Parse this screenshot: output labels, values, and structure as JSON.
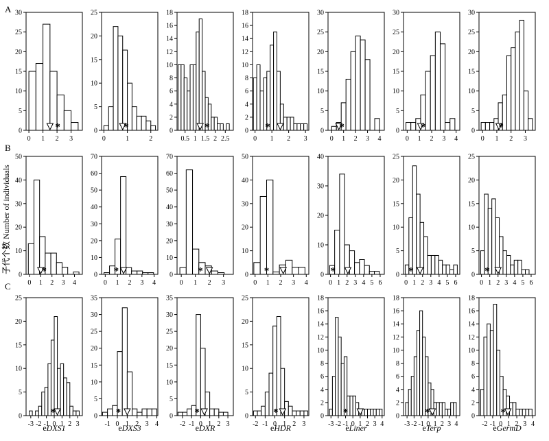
{
  "figure": {
    "ylabel": "子代个数 Number of individuals",
    "rows": [
      {
        "letter": "A"
      },
      {
        "letter": "B"
      },
      {
        "letter": "C"
      }
    ],
    "columns": [
      {
        "prefix": "e",
        "gene": "DXS1"
      },
      {
        "prefix": "e",
        "gene": "DXS3"
      },
      {
        "prefix": "e",
        "gene": "DXR"
      },
      {
        "prefix": "e",
        "gene": "HDR"
      },
      {
        "prefix": "e",
        "gene": "Liner"
      },
      {
        "prefix": "e",
        "gene": "Terp"
      },
      {
        "prefix": "e",
        "gene": "GermD"
      }
    ]
  },
  "chart_data": [
    {
      "type": "bar",
      "row": "A",
      "col": 0,
      "ylim": [
        0,
        30
      ],
      "yticks": [
        0,
        5,
        10,
        15,
        20,
        25,
        30
      ],
      "xlim": [
        -0.2,
        3.8
      ],
      "xticks": [
        0,
        1,
        2,
        3
      ],
      "bins": [
        0,
        0.5,
        1,
        1.5,
        2,
        2.5,
        3,
        3.5
      ],
      "counts": [
        15,
        17,
        27,
        15,
        9,
        5,
        2
      ],
      "triangle": 1.5,
      "star": 2.05
    },
    {
      "type": "bar",
      "row": "A",
      "col": 1,
      "ylim": [
        0,
        25
      ],
      "yticks": [
        0,
        5,
        10,
        15,
        20,
        25
      ],
      "xlim": [
        -0.1,
        2.3
      ],
      "xticks": [
        0,
        1,
        2
      ],
      "bins": [
        0,
        0.2,
        0.4,
        0.6,
        0.8,
        1,
        1.2,
        1.4,
        1.6,
        1.8,
        2,
        2.2
      ],
      "counts": [
        1,
        5,
        22,
        20,
        17,
        10,
        5,
        3,
        3,
        2,
        1
      ],
      "triangle": 0.8,
      "star": 0.95
    },
    {
      "type": "bar",
      "row": "A",
      "col": 2,
      "ylim": [
        0,
        18
      ],
      "yticks": [
        0,
        2,
        4,
        6,
        8,
        10,
        12,
        14,
        16,
        18
      ],
      "xlim": [
        0.1,
        2.9
      ],
      "xticks": [
        0.5,
        1,
        1.5,
        2,
        2.5
      ],
      "xtick_labels": [
        "0.5",
        "1",
        "1.5",
        "2",
        "2.5"
      ],
      "bins": [
        0.15,
        0.3,
        0.45,
        0.6,
        0.75,
        0.9,
        1.05,
        1.2,
        1.35,
        1.5,
        1.65,
        1.8,
        1.95,
        2.1,
        2.25,
        2.4,
        2.55,
        2.7
      ],
      "counts": [
        10,
        10,
        8,
        6,
        10,
        10,
        15,
        17,
        9,
        5,
        4,
        2,
        2,
        1,
        1,
        0,
        1
      ],
      "triangle": 1.25,
      "star": 1.6
    },
    {
      "type": "bar",
      "row": "A",
      "col": 3,
      "ylim": [
        0,
        18
      ],
      "yticks": [
        0,
        2,
        4,
        6,
        8,
        10,
        12,
        14,
        16,
        18
      ],
      "xlim": [
        -0.15,
        3.2
      ],
      "xticks": [
        0,
        1,
        2,
        3
      ],
      "bins": [
        -0.1,
        0.1,
        0.3,
        0.5,
        0.7,
        0.9,
        1.1,
        1.3,
        1.5,
        1.7,
        1.9,
        2.1,
        2.3,
        2.5,
        2.7,
        2.9,
        3.1
      ],
      "counts": [
        8,
        10,
        6,
        8,
        9,
        13,
        15,
        9,
        4,
        2,
        2,
        2,
        1,
        1,
        1,
        1
      ],
      "triangle": 1.5,
      "star": 0.75
    },
    {
      "type": "bar",
      "row": "A",
      "col": 4,
      "ylim": [
        0,
        30
      ],
      "yticks": [
        0,
        5,
        10,
        15,
        20,
        25,
        30
      ],
      "xlim": [
        -0.3,
        4.4
      ],
      "xticks": [
        0,
        1,
        2,
        3,
        4
      ],
      "bins": [
        0,
        0.4,
        0.8,
        1.2,
        1.6,
        2,
        2.4,
        2.8,
        3.2,
        3.6,
        4
      ],
      "counts": [
        1,
        2,
        7,
        13,
        20,
        24,
        23,
        18,
        0,
        3
      ],
      "triangle": 0.6,
      "star": 0.85
    },
    {
      "type": "bar",
      "row": "A",
      "col": 5,
      "ylim": [
        0,
        30
      ],
      "yticks": [
        0,
        5,
        10,
        15,
        20,
        25,
        30
      ],
      "xlim": [
        -0.3,
        4.3
      ],
      "xticks": [
        0,
        1,
        2,
        3,
        4
      ],
      "bins": [
        -0.1,
        0.3,
        0.7,
        1.1,
        1.5,
        1.9,
        2.3,
        2.7,
        3.1,
        3.5,
        3.9
      ],
      "counts": [
        2,
        2,
        3,
        9,
        15,
        19,
        25,
        22,
        2,
        3
      ],
      "triangle": 1.1,
      "star": 1.3
    },
    {
      "type": "bar",
      "row": "A",
      "col": 6,
      "ylim": [
        0,
        30
      ],
      "yticks": [
        0,
        5,
        10,
        15,
        20,
        25,
        30
      ],
      "xlim": [
        -0.25,
        3.7
      ],
      "xticks": [
        0,
        1,
        2,
        3
      ],
      "bins": [
        -0.1,
        0.2,
        0.5,
        0.8,
        1.1,
        1.4,
        1.7,
        2,
        2.3,
        2.6,
        2.9,
        3.2,
        3.5
      ],
      "counts": [
        2,
        2,
        2,
        3,
        7,
        9,
        19,
        21,
        25,
        28,
        10,
        3
      ],
      "triangle": 1.15,
      "star": 1.3
    },
    {
      "type": "bar",
      "row": "B",
      "col": 0,
      "ylim": [
        0,
        50
      ],
      "yticks": [
        0,
        10,
        20,
        30,
        40,
        50
      ],
      "xlim": [
        -0.3,
        4.7
      ],
      "xticks": [
        0,
        1,
        2,
        3,
        4
      ],
      "bins": [
        -0.1,
        0.4,
        0.9,
        1.4,
        1.9,
        2.4,
        2.9,
        3.4,
        3.9,
        4.4
      ],
      "counts": [
        13,
        40,
        16,
        9,
        9,
        5,
        3,
        0,
        1
      ],
      "triangle": 1.0,
      "star": 1.3
    },
    {
      "type": "bar",
      "row": "B",
      "col": 1,
      "ylim": [
        0,
        70
      ],
      "yticks": [
        0,
        10,
        20,
        30,
        40,
        50,
        60,
        70
      ],
      "xlim": [
        -0.3,
        4.3
      ],
      "xticks": [
        0,
        1,
        2,
        3,
        4
      ],
      "bins": [
        -0.1,
        0.35,
        0.8,
        1.25,
        1.7,
        2.15,
        2.6,
        3.05,
        3.5,
        3.95
      ],
      "counts": [
        1,
        5,
        21,
        58,
        4,
        2,
        2,
        1,
        1
      ],
      "triangle": 1.5,
      "star": 0.9
    },
    {
      "type": "bar",
      "row": "B",
      "col": 2,
      "ylim": [
        0,
        70
      ],
      "yticks": [
        0,
        10,
        20,
        30,
        40,
        50,
        60,
        70
      ],
      "xlim": [
        -0.3,
        3.7
      ],
      "xticks": [
        0,
        1,
        2,
        3
      ],
      "bins": [
        -0.1,
        0.35,
        0.8,
        1.25,
        1.7,
        2.15,
        2.6,
        3.05,
        3.5
      ],
      "counts": [
        4,
        62,
        15,
        7,
        5,
        2,
        1,
        0
      ],
      "triangle": 2.0,
      "star": 1.35
    },
    {
      "type": "bar",
      "row": "B",
      "col": 3,
      "ylim": [
        0,
        50
      ],
      "yticks": [
        0,
        10,
        20,
        30,
        40,
        50
      ],
      "xlim": [
        -0.2,
        4.2
      ],
      "xticks": [
        0,
        1,
        2,
        3,
        4
      ],
      "bins": [
        -0.1,
        0.4,
        0.9,
        1.4,
        1.9,
        2.4,
        2.9,
        3.4,
        3.9
      ],
      "counts": [
        5,
        33,
        40,
        1,
        4,
        6,
        3,
        3
      ],
      "triangle": 2.2,
      "star": 0.9
    },
    {
      "type": "bar",
      "row": "B",
      "col": 4,
      "ylim": [
        0,
        40
      ],
      "yticks": [
        0,
        10,
        20,
        30,
        40
      ],
      "xlim": [
        -0.3,
        6.5
      ],
      "xticks": [
        0,
        1,
        2,
        3,
        4,
        5,
        6
      ],
      "bins": [
        -0.1,
        0.5,
        1.1,
        1.7,
        2.3,
        2.9,
        3.5,
        4.1,
        4.7,
        5.3,
        5.9,
        6.3
      ],
      "counts": [
        3,
        15,
        34,
        10,
        8,
        4,
        5,
        3,
        1,
        1,
        0
      ],
      "triangle": 2.1,
      "star": 0.3
    },
    {
      "type": "bar",
      "row": "B",
      "col": 5,
      "ylim": [
        0,
        25
      ],
      "yticks": [
        0,
        5,
        10,
        15,
        20,
        25
      ],
      "xlim": [
        -0.3,
        6.5
      ],
      "xticks": [
        0,
        1,
        2,
        3,
        4,
        5,
        6
      ],
      "bins": [
        -0.1,
        0.35,
        0.8,
        1.25,
        1.7,
        2.15,
        2.6,
        3.05,
        3.5,
        3.95,
        4.4,
        4.85,
        5.3,
        5.75,
        6.2
      ],
      "counts": [
        2,
        12,
        23,
        17,
        11,
        8,
        4,
        4,
        4,
        3,
        2,
        2,
        1,
        2
      ],
      "triangle": 1.7,
      "star": 0.6
    },
    {
      "type": "bar",
      "row": "B",
      "col": 6,
      "ylim": [
        0,
        25
      ],
      "yticks": [
        0,
        5,
        10,
        15,
        20,
        25
      ],
      "xlim": [
        -0.3,
        6.5
      ],
      "xticks": [
        0,
        1,
        2,
        3,
        4,
        5,
        6
      ],
      "bins": [
        -0.1,
        0.35,
        0.8,
        1.25,
        1.7,
        2.15,
        2.6,
        3.05,
        3.5,
        3.95,
        4.4,
        4.85,
        5.3,
        5.75,
        6.2
      ],
      "counts": [
        5,
        17,
        14,
        16,
        12,
        8,
        5,
        4,
        2,
        3,
        3,
        1,
        1,
        0
      ],
      "triangle": 2.0,
      "star": 0.7
    },
    {
      "type": "bar",
      "row": "C",
      "col": 0,
      "ylim": [
        0,
        25
      ],
      "yticks": [
        0,
        5,
        10,
        15,
        20,
        25
      ],
      "xlim": [
        -3.6,
        3.6
      ],
      "xticks": [
        -3,
        -2,
        -1,
        0,
        1,
        2,
        3
      ],
      "xtick_labels": [
        "-3",
        "-2",
        "-1",
        "0",
        "1",
        "2",
        "3"
      ],
      "bins": [
        -3.2,
        -2.8,
        -2.4,
        -2,
        -1.6,
        -1.2,
        -0.8,
        -0.4,
        0,
        0.4,
        0.8,
        1.2,
        1.6,
        2,
        2.4,
        2.8,
        3.2
      ],
      "counts": [
        1,
        0,
        1,
        2,
        5,
        6,
        11,
        16,
        21,
        10,
        11,
        8,
        7,
        2,
        1,
        1
      ],
      "triangle": 0.4,
      "star": -0.15
    },
    {
      "type": "bar",
      "row": "C",
      "col": 1,
      "ylim": [
        0,
        35
      ],
      "yticks": [
        0,
        5,
        10,
        15,
        20,
        25,
        30,
        35
      ],
      "xlim": [
        -1.6,
        4.1
      ],
      "xticks": [
        -1,
        0,
        1,
        2,
        3,
        4
      ],
      "xtick_labels": [
        "-1",
        "0",
        "1",
        "2",
        "3",
        "4"
      ],
      "bins": [
        -1.5,
        -1.0,
        -0.5,
        0,
        0.5,
        1,
        1.5,
        2,
        2.5,
        3,
        3.5,
        4
      ],
      "counts": [
        1,
        2,
        3,
        19,
        32,
        13,
        2,
        1,
        2,
        2,
        2
      ],
      "triangle": 1.0,
      "star": 0.1
    },
    {
      "type": "bar",
      "row": "C",
      "col": 2,
      "ylim": [
        0,
        35
      ],
      "yticks": [
        0,
        5,
        10,
        15,
        20,
        25,
        30,
        35
      ],
      "xlim": [
        -2.6,
        3.6
      ],
      "xticks": [
        -2,
        -1,
        0,
        1,
        2,
        3
      ],
      "xtick_labels": [
        "-2",
        "-1",
        "0",
        "1",
        "2",
        "3"
      ],
      "bins": [
        -2.5,
        -2.0,
        -1.5,
        -1.0,
        -0.5,
        0,
        0.5,
        1,
        1.5,
        2,
        2.5,
        3
      ],
      "counts": [
        1,
        1,
        2,
        3,
        30,
        20,
        7,
        2,
        2,
        1,
        1
      ],
      "triangle": 0.4,
      "star": -0.4
    },
    {
      "type": "bar",
      "row": "C",
      "col": 3,
      "ylim": [
        0,
        25
      ],
      "yticks": [
        0,
        5,
        10,
        15,
        20,
        25
      ],
      "xlim": [
        -2.3,
        3.5
      ],
      "xticks": [
        -2,
        -1,
        0,
        1,
        2,
        3
      ],
      "xtick_labels": [
        "-2",
        "-1",
        "0",
        "1",
        "2",
        "3"
      ],
      "bins": [
        -2.2,
        -1.8,
        -1.4,
        -1.0,
        -0.6,
        -0.2,
        0.2,
        0.6,
        1,
        1.4,
        1.8,
        2.2,
        2.6,
        3,
        3.4
      ],
      "counts": [
        1,
        1,
        2,
        5,
        9,
        19,
        21,
        10,
        3,
        2,
        1,
        1,
        1,
        1
      ],
      "triangle": 0.8,
      "star": 0.1
    },
    {
      "type": "bar",
      "row": "C",
      "col": 4,
      "ylim": [
        0,
        18
      ],
      "yticks": [
        0,
        2,
        4,
        6,
        8,
        10,
        12,
        14,
        16,
        18
      ],
      "xlim": [
        -3.4,
        4.3
      ],
      "xticks": [
        -3,
        -2,
        -1,
        0,
        1,
        2,
        3,
        4
      ],
      "xtick_labels": [
        "-3",
        "-2",
        "-1",
        "0",
        "1",
        "2",
        "3",
        "4"
      ],
      "bins": [
        -3.2,
        -2.8,
        -2.4,
        -2,
        -1.6,
        -1.2,
        -0.8,
        -0.4,
        0,
        0.4,
        0.8,
        1.2,
        1.6,
        2,
        2.4,
        2.8,
        3.2,
        3.6,
        4
      ],
      "counts": [
        1,
        6,
        15,
        12,
        8,
        9,
        3,
        3,
        3,
        2,
        1,
        1,
        1,
        1,
        1,
        1,
        1,
        1
      ],
      "triangle": 1.0,
      "star": -1.0
    },
    {
      "type": "bar",
      "row": "C",
      "col": 5,
      "ylim": [
        0,
        18
      ],
      "yticks": [
        0,
        2,
        4,
        6,
        8,
        10,
        12,
        14,
        16,
        18
      ],
      "xlim": [
        -3.5,
        4.5
      ],
      "xticks": [
        -3,
        -2,
        -1,
        0,
        1,
        2,
        3,
        4
      ],
      "xtick_labels": [
        "-3",
        "-2",
        "-1",
        "0",
        "1",
        "2",
        "3",
        "4"
      ],
      "bins": [
        -3.2,
        -2.8,
        -2.4,
        -2,
        -1.6,
        -1.2,
        -0.8,
        -0.4,
        0,
        0.4,
        0.8,
        1.2,
        1.6,
        2,
        2.4,
        2.8,
        3.2,
        3.6,
        4
      ],
      "counts": [
        2,
        4,
        6,
        9,
        13,
        16,
        12,
        9,
        5,
        4,
        2,
        2,
        2,
        2,
        1,
        1,
        2,
        2
      ],
      "triangle": 0.6,
      "star": -0.1
    },
    {
      "type": "bar",
      "row": "C",
      "col": 6,
      "ylim": [
        0,
        18
      ],
      "yticks": [
        0,
        2,
        4,
        6,
        8,
        10,
        12,
        14,
        16,
        18
      ],
      "xlim": [
        -2.7,
        4.3
      ],
      "xticks": [
        -2,
        -1,
        0,
        1,
        2,
        3,
        4
      ],
      "xtick_labels": [
        "-2",
        "-1",
        "0",
        "1",
        "2",
        "3",
        "4"
      ],
      "bins": [
        -2.5,
        -2.1,
        -1.7,
        -1.3,
        -0.9,
        -0.5,
        -0.1,
        0.3,
        0.7,
        1.1,
        1.5,
        1.9,
        2.3,
        2.7,
        3.1,
        3.5,
        3.9
      ],
      "counts": [
        4,
        12,
        14,
        13,
        17,
        10,
        6,
        4,
        3,
        2,
        2,
        1,
        1,
        1,
        1,
        1
      ],
      "triangle": 0.9,
      "star": 0.3
    }
  ]
}
